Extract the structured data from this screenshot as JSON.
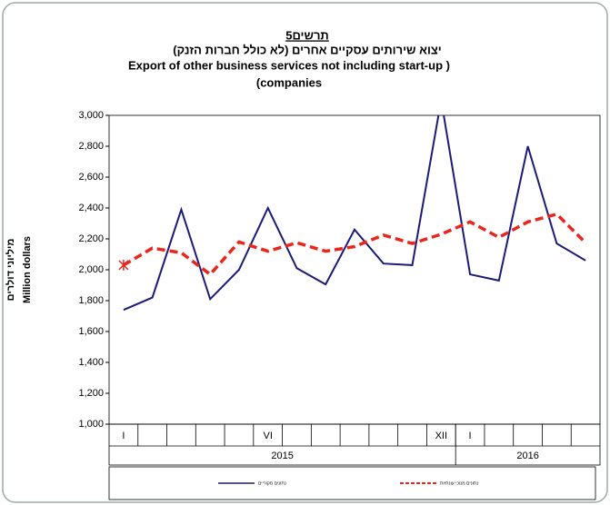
{
  "chart_data": {
    "type": "line",
    "title_lines": [
      "תרשים5",
      "יצוא שירותים עסקיים אחרים (לא כולל חברות הזנק)",
      "Export of other business services not including start-up  )",
      "(companies"
    ],
    "ylabel_en": "Million dollars",
    "ylabel_he": "מיליוני דולרים",
    "categories": [
      "I",
      null,
      null,
      null,
      null,
      "VI",
      null,
      null,
      null,
      null,
      null,
      "XII",
      "I",
      null,
      null,
      null,
      null
    ],
    "groups": [
      {
        "label": "2015",
        "count": 12
      },
      {
        "label": "2016",
        "count": 5
      }
    ],
    "series": [
      {
        "name": "נתונים מקוריים",
        "color": "#1a1a7a",
        "dash": false,
        "values": [
          1740,
          1820,
          2390,
          1810,
          2000,
          2400,
          2010,
          1905,
          2260,
          2040,
          2030,
          3100,
          1970,
          1930,
          2800,
          2170,
          2060
        ]
      },
      {
        "name": "נתונים מנוכי עונתיות",
        "color": "#e8261c",
        "dash": true,
        "values": [
          2030,
          2140,
          2110,
          1970,
          2180,
          2120,
          2175,
          2120,
          2150,
          2225,
          2170,
          2230,
          2310,
          2210,
          2310,
          2360,
          2175
        ]
      }
    ],
    "ylim": [
      1000,
      3000
    ],
    "yticks": [
      {
        "value": 1000,
        "label": "1,000"
      },
      {
        "value": 1200,
        "label": "1,200"
      },
      {
        "value": 1400,
        "label": "1,400"
      },
      {
        "value": 1600,
        "label": "1,600"
      },
      {
        "value": 1800,
        "label": "1,800"
      },
      {
        "value": 2000,
        "label": "2,000"
      },
      {
        "value": 2200,
        "label": "2,200"
      },
      {
        "value": 2400,
        "label": "2,400"
      },
      {
        "value": 2600,
        "label": "2,600"
      },
      {
        "value": 2800,
        "label": "2,800"
      },
      {
        "value": 3000,
        "label": "3,000"
      }
    ],
    "grid": false
  }
}
